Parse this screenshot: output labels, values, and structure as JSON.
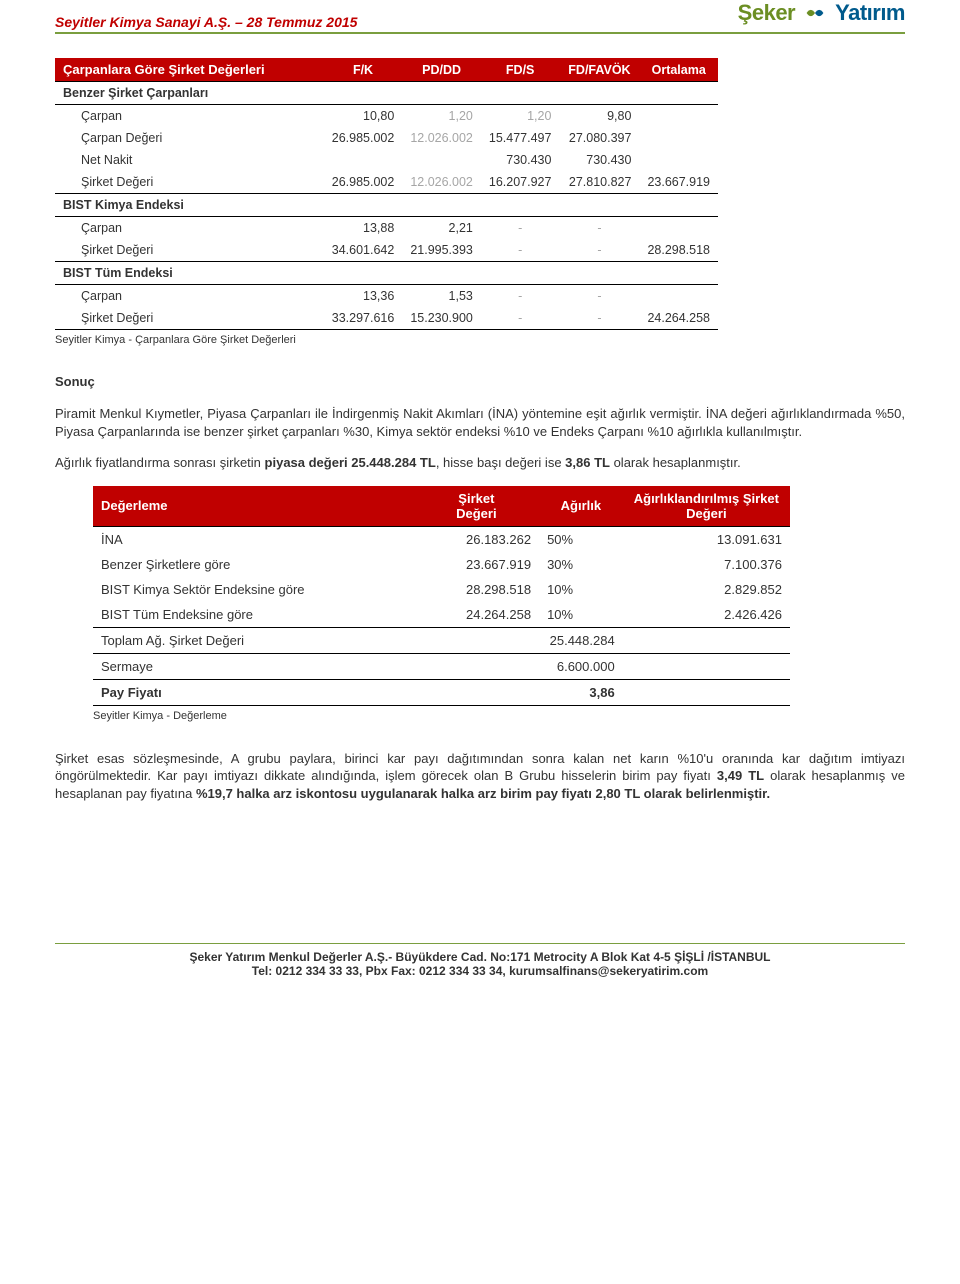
{
  "header": {
    "title": "Seyitler Kimya Sanayi A.Ş. – 28 Temmuz 2015",
    "logo_left": "Şeker",
    "logo_right": "Yatırım"
  },
  "table1": {
    "title": "Çarpanlara Göre Şirket Değerleri",
    "cols": [
      "F/K",
      "PD/DD",
      "FD/S",
      "FD/FAVÖK",
      "Ortalama"
    ],
    "sections": [
      {
        "name": "Benzer Şirket Çarpanları",
        "rows": [
          {
            "label": "Çarpan",
            "vals": [
              "10,80",
              "1,20",
              "1,20",
              "9,80",
              ""
            ],
            "grey": [
              false,
              true,
              true,
              false,
              false
            ]
          },
          {
            "label": "Çarpan Değeri",
            "vals": [
              "26.985.002",
              "12.026.002",
              "15.477.497",
              "27.080.397",
              ""
            ],
            "grey": [
              false,
              true,
              false,
              false,
              false
            ]
          },
          {
            "label": "Net Nakit",
            "vals": [
              "",
              "",
              "730.430",
              "730.430",
              ""
            ],
            "grey": [
              false,
              false,
              false,
              false,
              false
            ]
          },
          {
            "label": "Şirket Değeri",
            "vals": [
              "26.985.002",
              "12.026.002",
              "16.207.927",
              "27.810.827",
              "23.667.919"
            ],
            "grey": [
              false,
              true,
              false,
              false,
              false
            ],
            "bb": true
          }
        ]
      },
      {
        "name": "BIST Kimya Endeksi",
        "rows": [
          {
            "label": "Çarpan",
            "vals": [
              "13,88",
              "2,21",
              "-",
              "-",
              ""
            ],
            "dash": [
              false,
              false,
              true,
              true,
              false
            ]
          },
          {
            "label": "Şirket Değeri",
            "vals": [
              "34.601.642",
              "21.995.393",
              "-",
              "-",
              "28.298.518"
            ],
            "dash": [
              false,
              false,
              true,
              true,
              false
            ],
            "bb": true
          }
        ]
      },
      {
        "name": "BIST Tüm Endeksi",
        "rows": [
          {
            "label": "Çarpan",
            "vals": [
              "13,36",
              "1,53",
              "-",
              "-",
              ""
            ],
            "dash": [
              false,
              false,
              true,
              true,
              false
            ]
          },
          {
            "label": "Şirket Değeri",
            "vals": [
              "33.297.616",
              "15.230.900",
              "-",
              "-",
              "24.264.258"
            ],
            "dash": [
              false,
              false,
              true,
              true,
              false
            ],
            "bb": true
          }
        ]
      }
    ],
    "caption": "Seyitler Kimya - Çarpanlara Göre Şirket Değerleri"
  },
  "sonuc": {
    "heading": "Sonuç",
    "p1": "Piramit Menkul Kıymetler, Piyasa Çarpanları ile İndirgenmiş Nakit Akımları (İNA) yöntemine eşit ağırlık vermiştir. İNA değeri ağırlıklandırmada %50, Piyasa Çarpanlarında ise benzer şirket çarpanları %30, Kimya sektör endeksi %10 ve Endeks Çarpanı %10 ağırlıkla kullanılmıştır.",
    "p2a": "Ağırlık fiyatlandırma sonrası şirketin ",
    "p2b": "piyasa değeri 25.448.284 TL",
    "p2c": ", hisse başı değeri ise ",
    "p2d": "3,86 TL",
    "p2e": " olarak hesaplanmıştır."
  },
  "table2": {
    "title": "Değerleme",
    "cols": [
      "Şirket Değeri",
      "Ağırlık",
      "Ağırlıklandırılmış Şirket Değeri"
    ],
    "rows": [
      {
        "label": "İNA",
        "v1": "26.183.262",
        "v2": "50%",
        "v3": "13.091.631"
      },
      {
        "label": "Benzer Şirketlere göre",
        "v1": "23.667.919",
        "v2": "30%",
        "v3": "7.100.376"
      },
      {
        "label": "BIST Kimya Sektör Endeksine göre",
        "v1": "28.298.518",
        "v2": "10%",
        "v3": "2.829.852"
      },
      {
        "label": "BIST Tüm Endeksine göre",
        "v1": "24.264.258",
        "v2": "10%",
        "v3": "2.426.426",
        "bb": true
      }
    ],
    "summary": [
      {
        "label": "Toplam Ağ. Şirket Değeri",
        "val": "25.448.284",
        "bb": true
      },
      {
        "label": "Sermaye",
        "val": "6.600.000",
        "bb": true
      },
      {
        "label": "Pay Fiyatı",
        "val": "3,86",
        "bold": true,
        "bb": true
      }
    ],
    "caption": "Seyitler Kimya - Değerleme"
  },
  "p3": {
    "a": "Şirket esas sözleşmesinde, A grubu paylara, birinci kar payı dağıtımından sonra kalan net karın %10'u oranında kar dağıtım imtiyazı öngörülmektedir. Kar payı imtiyazı dikkate alındığında, işlem görecek olan B Grubu hisselerin birim pay fiyatı ",
    "b": "3,49 TL",
    "c": " olarak hesaplanmış ve hesaplanan pay fiyatına ",
    "d": "%19,7 halka arz iskontosu uygulanarak halka arz birim pay fiyatı 2,80 TL olarak belirlenmiştir."
  },
  "footer": {
    "l1": "Şeker Yatırım Menkul Değerler A.Ş.- Büyükdere Cad. No:171 Metrocity A Blok Kat 4-5  ŞİŞLİ /İSTANBUL",
    "l2": "Tel: 0212 334 33 33, Pbx Fax: 0212 334 33 34, kurumsalfinans@sekeryatirim.com"
  }
}
